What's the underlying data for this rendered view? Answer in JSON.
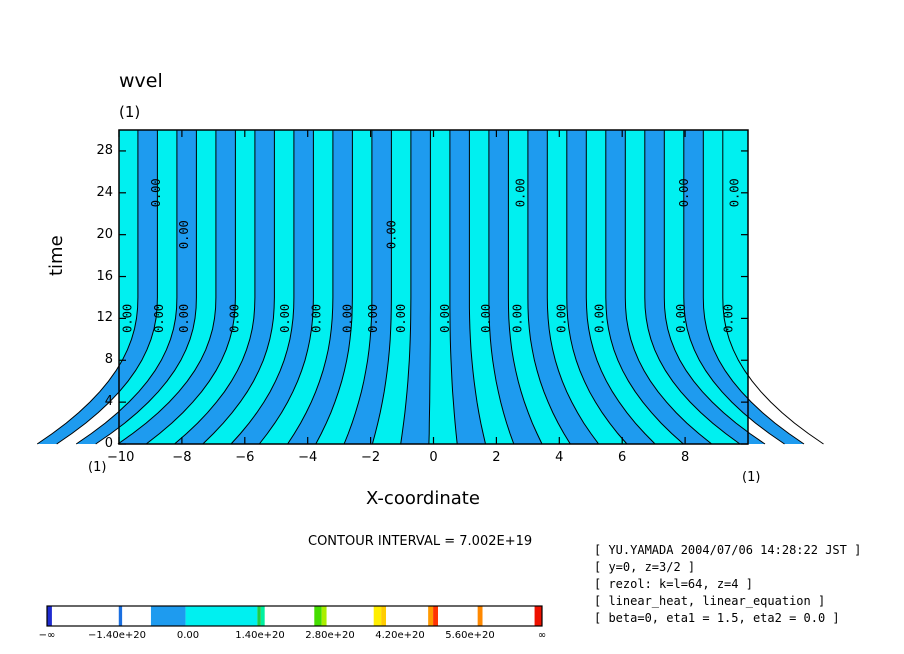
{
  "chart_data": {
    "type": "contour",
    "title": "wvel",
    "title_units": "(1)",
    "xlabel": "X-coordinate",
    "ylabel": "time",
    "x_units_left": "(1)",
    "x_units_right": "(1)",
    "xlim": [
      -10,
      10
    ],
    "ylim": [
      0,
      30
    ],
    "x_ticks": [
      -10,
      -8,
      -6,
      -4,
      -2,
      0,
      2,
      4,
      6,
      8
    ],
    "x_tick_labels": [
      "−10",
      "−8",
      "−6",
      "−4",
      "−2",
      "0",
      "2",
      "4",
      "6",
      "8"
    ],
    "y_ticks": [
      0,
      4,
      8,
      12,
      16,
      20,
      24,
      28
    ],
    "y_tick_labels": [
      "0",
      "4",
      "8",
      "12",
      "16",
      "20",
      "24",
      "28"
    ],
    "contour_label": "0.00",
    "contour_interval_text": "CONTOUR INTERVAL = 7.002E+19",
    "colors": {
      "dark_blue": "#1e9bef",
      "cyan": "#00f0f0",
      "line": "#000000"
    },
    "colorbar": {
      "labels": [
        "−∞",
        "−1.40e+20",
        "0.00",
        "1.40e+20",
        "2.80e+20",
        "4.20e+20",
        "5.60e+20",
        "∞"
      ],
      "segments": [
        {
          "from": 0.0,
          "to": 0.01,
          "color": "#1f2bd0"
        },
        {
          "from": 0.01,
          "to": 0.145,
          "color": "#ffffff"
        },
        {
          "from": 0.145,
          "to": 0.152,
          "color": "#1a6fe0"
        },
        {
          "from": 0.152,
          "to": 0.21,
          "color": "#ffffff"
        },
        {
          "from": 0.21,
          "to": 0.28,
          "color": "#1e9bef"
        },
        {
          "from": 0.28,
          "to": 0.425,
          "color": "#00f0f0"
        },
        {
          "from": 0.425,
          "to": 0.432,
          "color": "#22cc44"
        },
        {
          "from": 0.432,
          "to": 0.44,
          "color": "#00f0a0"
        },
        {
          "from": 0.44,
          "to": 0.54,
          "color": "#ffffff"
        },
        {
          "from": 0.54,
          "to": 0.555,
          "color": "#44dd00"
        },
        {
          "from": 0.555,
          "to": 0.565,
          "color": "#aaee00"
        },
        {
          "from": 0.565,
          "to": 0.66,
          "color": "#ffffff"
        },
        {
          "from": 0.66,
          "to": 0.675,
          "color": "#ffee00"
        },
        {
          "from": 0.675,
          "to": 0.685,
          "color": "#ffcc00"
        },
        {
          "from": 0.685,
          "to": 0.77,
          "color": "#ffffff"
        },
        {
          "from": 0.77,
          "to": 0.78,
          "color": "#ff9900"
        },
        {
          "from": 0.78,
          "to": 0.79,
          "color": "#ff3300"
        },
        {
          "from": 0.79,
          "to": 0.87,
          "color": "#ffffff"
        },
        {
          "from": 0.87,
          "to": 0.88,
          "color": "#ff8800"
        },
        {
          "from": 0.88,
          "to": 0.985,
          "color": "#ffffff"
        },
        {
          "from": 0.985,
          "to": 1.0,
          "color": "#ee1100"
        }
      ]
    }
  },
  "info": {
    "lines": [
      "[ YU.YAMADA 2004/07/06 14:28:22 JST ]",
      "[ y=0, z=3/2 ]",
      "[ rezol: k=l=64, z=4 ]",
      "[ linear_heat, linear_equation ]",
      "[ beta=0, eta1 = 1.5, eta2 = 0.0 ]"
    ]
  }
}
